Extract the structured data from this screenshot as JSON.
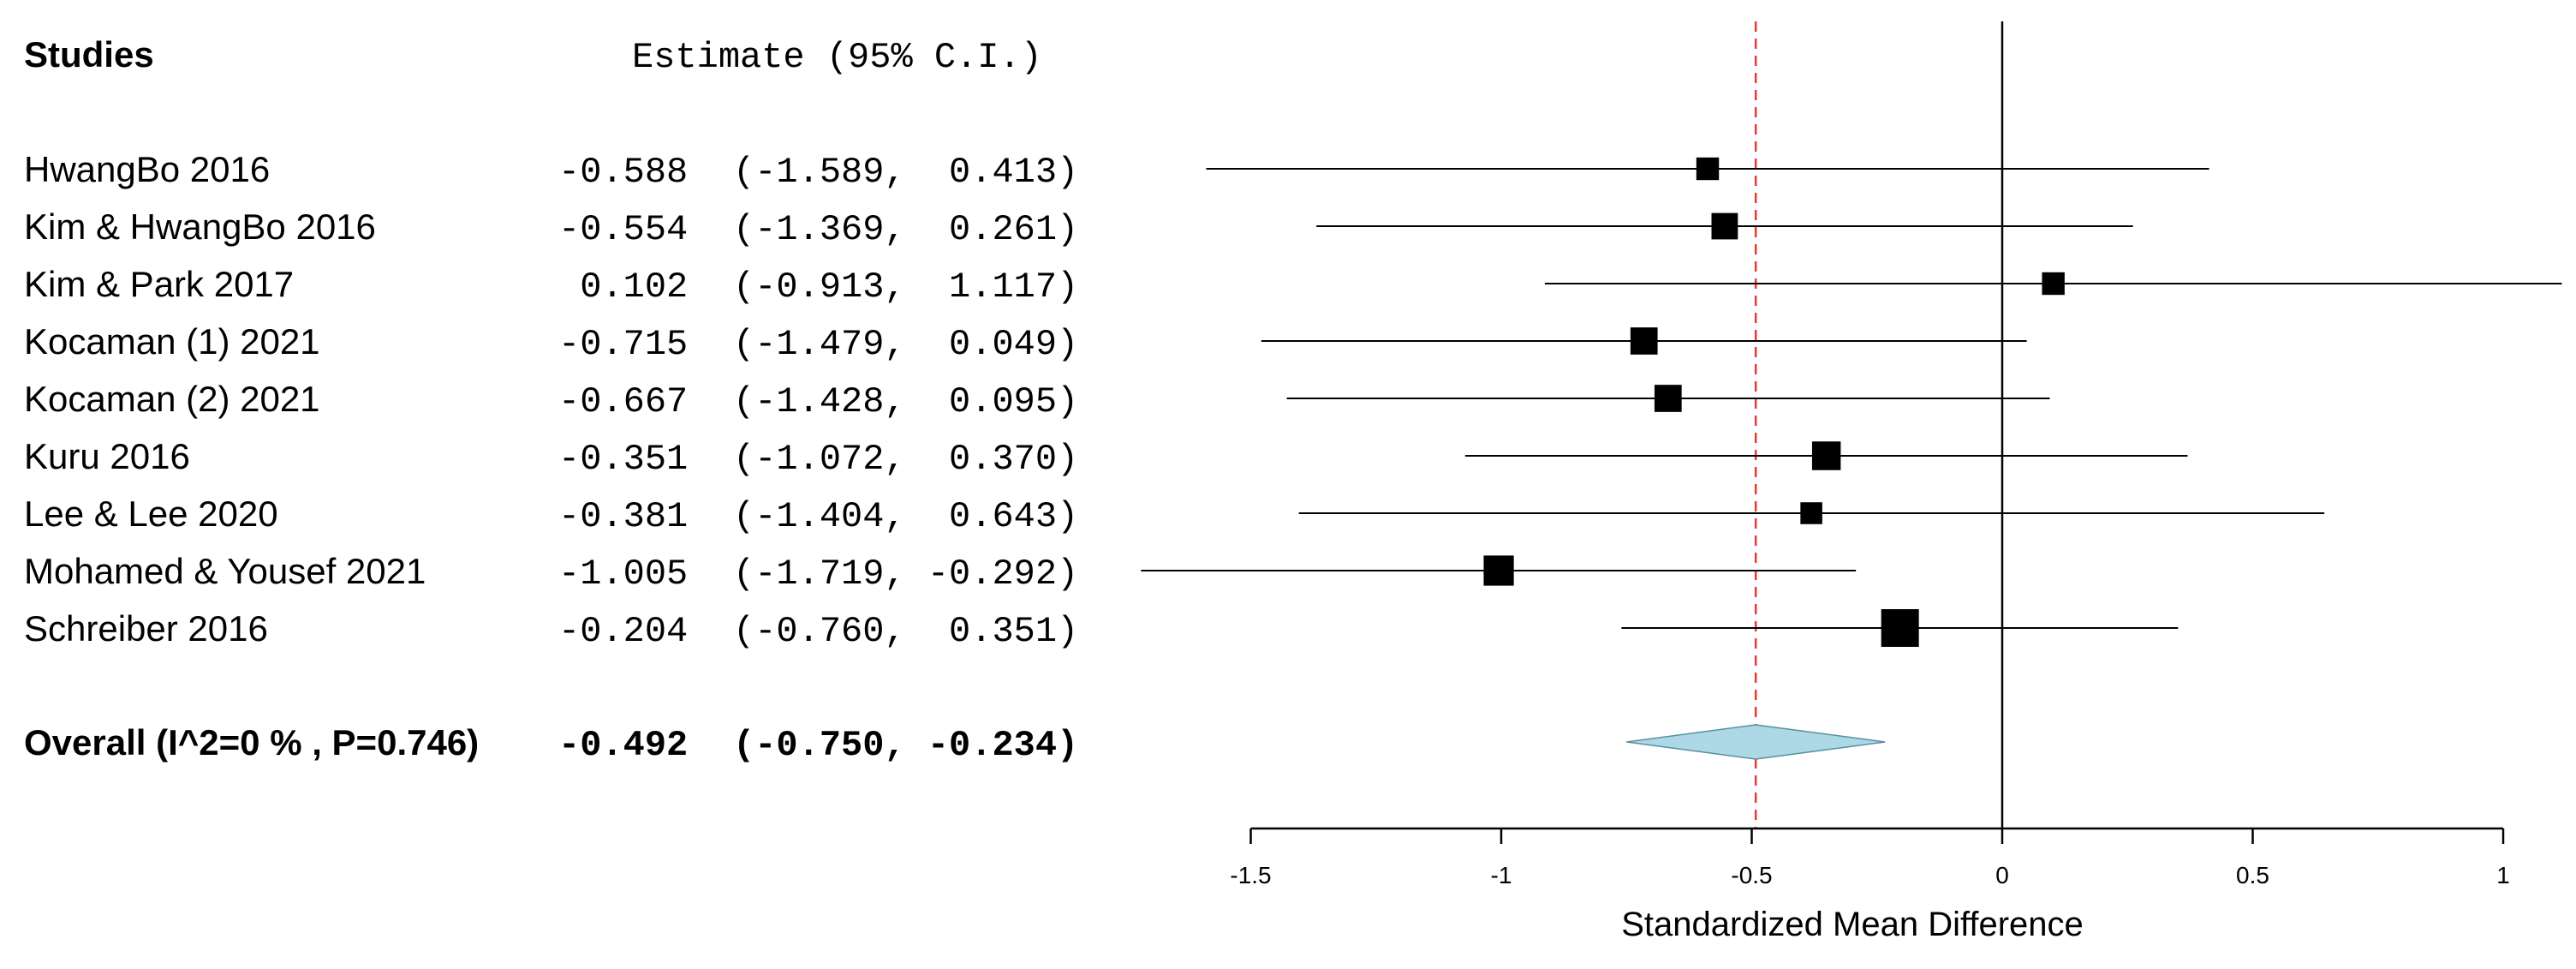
{
  "chart_data": {
    "type": "forest",
    "header": {
      "studies_label": "Studies",
      "estimate_label": "Estimate (95% C.I.)"
    },
    "studies": [
      {
        "name": "HwangBo 2016",
        "estimate": -0.588,
        "lower": -1.589,
        "upper": 0.413,
        "estimate_text": "-0.588",
        "ci_text": "(-1.589,  0.413)",
        "weight_size": 0.6
      },
      {
        "name": "Kim & HwangBo 2016",
        "estimate": -0.554,
        "lower": -1.369,
        "upper": 0.261,
        "estimate_text": "-0.554",
        "ci_text": "(-1.369,  0.261)",
        "weight_size": 0.7
      },
      {
        "name": "Kim & Park 2017",
        "estimate": 0.102,
        "lower": -0.913,
        "upper": 1.117,
        "estimate_text": " 0.102",
        "ci_text": "(-0.913,  1.117)",
        "weight_size": 0.6
      },
      {
        "name": "Kocaman (1) 2021",
        "estimate": -0.715,
        "lower": -1.479,
        "upper": 0.049,
        "estimate_text": "-0.715",
        "ci_text": "(-1.479,  0.049)",
        "weight_size": 0.72
      },
      {
        "name": "Kocaman (2) 2021",
        "estimate": -0.667,
        "lower": -1.428,
        "upper": 0.095,
        "estimate_text": "-0.667",
        "ci_text": "(-1.428,  0.095)",
        "weight_size": 0.72
      },
      {
        "name": "Kuru 2016",
        "estimate": -0.351,
        "lower": -1.072,
        "upper": 0.37,
        "estimate_text": "-0.351",
        "ci_text": "(-1.072,  0.370)",
        "weight_size": 0.76
      },
      {
        "name": "Lee & Lee 2020",
        "estimate": -0.381,
        "lower": -1.404,
        "upper": 0.643,
        "estimate_text": "-0.381",
        "ci_text": "(-1.404,  0.643)",
        "weight_size": 0.58
      },
      {
        "name": "Mohamed & Yousef 2021",
        "estimate": -1.005,
        "lower": -1.719,
        "upper": -0.292,
        "estimate_text": "-1.005",
        "ci_text": "(-1.719, -0.292)",
        "weight_size": 0.8
      },
      {
        "name": "Schreiber 2016",
        "estimate": -0.204,
        "lower": -0.76,
        "upper": 0.351,
        "estimate_text": "-0.204",
        "ci_text": "(-0.760,  0.351)",
        "weight_size": 1.0
      }
    ],
    "overall": {
      "label": "Overall (I^2=0 % , P=0.746)",
      "estimate": -0.492,
      "lower": -0.75,
      "upper": -0.234,
      "estimate_text": "-0.492",
      "ci_text": "(-0.750, -0.234)"
    },
    "x_axis": {
      "label": "Standardized Mean Difference",
      "ticks": [
        -1.5,
        -1,
        -0.5,
        0,
        0.5,
        1
      ],
      "tick_labels": [
        "-1.5",
        "-1",
        "-0.5",
        "0",
        "0.5",
        "1"
      ],
      "plot_range": [
        -1.5,
        1.0
      ],
      "view_range": [
        -1.719,
        1.117
      ]
    },
    "reference_line": 0,
    "summary_line": -0.492,
    "colors": {
      "marker": "#000000",
      "diamond_fill": "#add8e6",
      "summary_line": "#e53935",
      "axis": "#000000"
    }
  }
}
